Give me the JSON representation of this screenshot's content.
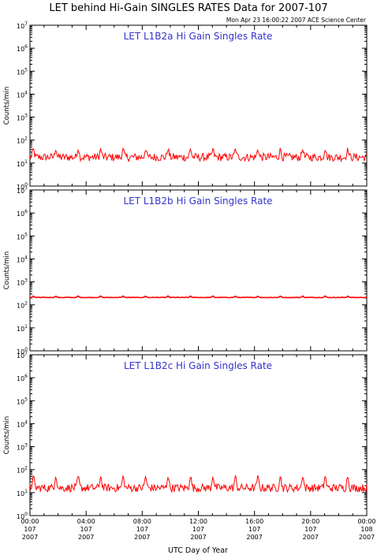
{
  "header": {
    "title": "LET behind Hi-Gain SINGLES RATES Data for 2007-107",
    "timestamp": "Mon Apr 23 16:00:22 2007 ACE Science Center"
  },
  "colors": {
    "axes": "#000000",
    "panel_title": "#3333cc",
    "data": "#ff0000"
  },
  "chart_data": [
    {
      "type": "line",
      "title": "LET L1B2a Hi Gain Singles Rate",
      "ylabel": "Counts/min",
      "yscale": "log",
      "ylim": [
        1,
        10000000
      ],
      "ytick_exponents": [
        "0",
        "1",
        "2",
        "3",
        "4",
        "5",
        "6",
        "7"
      ],
      "xlim": [
        0,
        24
      ],
      "series": [
        {
          "values_description_points": [
            [
              0,
              18
            ],
            [
              1,
              20
            ],
            [
              2,
              28
            ],
            [
              3,
              19
            ],
            [
              4,
              20
            ],
            [
              5,
              30
            ],
            [
              6,
              18
            ],
            [
              7,
              25
            ],
            [
              8,
              19
            ],
            [
              9,
              30
            ],
            [
              10,
              18
            ],
            [
              11,
              24
            ],
            [
              12,
              19
            ],
            [
              13,
              30
            ],
            [
              14,
              20
            ],
            [
              15,
              24
            ],
            [
              16,
              18
            ],
            [
              17,
              28
            ],
            [
              18,
              19
            ],
            [
              19,
              25
            ],
            [
              20,
              20
            ],
            [
              21,
              30
            ],
            [
              22,
              18
            ],
            [
              23,
              24
            ],
            [
              24,
              20
            ]
          ],
          "baseline": 18,
          "spike_peak": 40,
          "spike_period_hours": 1.6
        }
      ]
    },
    {
      "type": "line",
      "title": "LET L1B2b Hi Gain Singles Rate",
      "ylabel": "Counts/min",
      "yscale": "log",
      "ylim": [
        1,
        10000000
      ],
      "ytick_exponents": [
        "0",
        "1",
        "2",
        "3",
        "4",
        "5",
        "6",
        "7"
      ],
      "xlim": [
        0,
        24
      ],
      "series": [
        {
          "values_description_points": [
            [
              0,
              210
            ],
            [
              4,
              212
            ],
            [
              8,
              210
            ],
            [
              12,
              211
            ],
            [
              16,
              210
            ],
            [
              20,
              212
            ],
            [
              24,
              210
            ]
          ],
          "baseline": 210,
          "spike_peak": 240,
          "spike_period_hours": 1.6
        }
      ]
    },
    {
      "type": "line",
      "title": "LET L1B2c Hi Gain Singles Rate",
      "ylabel": "Counts/min",
      "yscale": "log",
      "ylim": [
        1,
        10000000
      ],
      "ytick_exponents": [
        "0",
        "1",
        "2",
        "3",
        "4",
        "5",
        "6",
        "7"
      ],
      "xlim": [
        0,
        24
      ],
      "xlabel": "UTC Day of Year",
      "xticks": [
        {
          "x": 0,
          "time": "00:00",
          "doy": "107",
          "year": "2007"
        },
        {
          "x": 4,
          "time": "04:00",
          "doy": "107",
          "year": "2007"
        },
        {
          "x": 8,
          "time": "08:00",
          "doy": "107",
          "year": "2007"
        },
        {
          "x": 12,
          "time": "12:00",
          "doy": "107",
          "year": "2007"
        },
        {
          "x": 16,
          "time": "16:00",
          "doy": "107",
          "year": "2007"
        },
        {
          "x": 20,
          "time": "20:00",
          "doy": "107",
          "year": "2007"
        },
        {
          "x": 24,
          "time": "00:00",
          "doy": "108",
          "year": "2007"
        }
      ],
      "series": [
        {
          "values_description_points": [
            [
              0,
              16
            ],
            [
              1,
              18
            ],
            [
              2,
              30
            ],
            [
              3,
              17
            ],
            [
              4,
              18
            ],
            [
              5,
              32
            ],
            [
              6,
              16
            ],
            [
              7,
              28
            ],
            [
              8,
              17
            ],
            [
              9,
              33
            ],
            [
              10,
              16
            ],
            [
              11,
              26
            ],
            [
              12,
              17
            ],
            [
              13,
              32
            ],
            [
              14,
              18
            ],
            [
              15,
              26
            ],
            [
              16,
              16
            ],
            [
              17,
              30
            ],
            [
              18,
              17
            ],
            [
              19,
              28
            ],
            [
              20,
              18
            ],
            [
              21,
              32
            ],
            [
              22,
              16
            ],
            [
              23,
              30
            ],
            [
              24,
              17
            ]
          ],
          "baseline": 16,
          "spike_peak": 50,
          "spike_period_hours": 1.6
        }
      ]
    }
  ]
}
